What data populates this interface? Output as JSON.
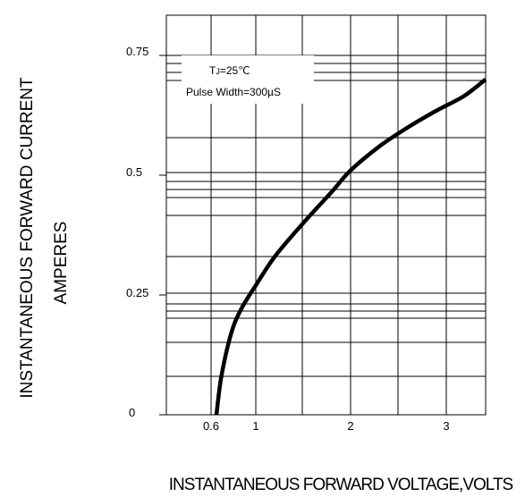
{
  "chart_data": {
    "type": "line",
    "xlabel": "INSTANTANEOUS FORWARD VOLTAGE,VOLTS",
    "ylabel_lines": [
      "INSTANTANEOUS FORWARD CURRENT",
      "AMPERES"
    ],
    "x_ticks": [
      "0.6",
      "1",
      "2",
      "3"
    ],
    "y_ticks": [
      "0",
      "0.25",
      "0.5",
      "0.75"
    ],
    "y_tick_values": [
      0,
      0.25,
      0.5,
      0.75
    ],
    "ylim": [
      0,
      0.75
    ],
    "annotation": {
      "tj_prefix": "T",
      "tj_sub": "J",
      "tj_value": "=25℃",
      "pulse": "Pulse Width=300µS"
    },
    "grid": true,
    "series": [
      {
        "x": [
          0.6,
          0.65,
          0.75,
          0.85,
          1.0,
          1.2,
          1.5,
          1.8,
          2.0,
          2.3,
          2.6,
          2.9,
          3.2,
          3.45
        ],
        "y": [
          0.0,
          0.08,
          0.17,
          0.22,
          0.27,
          0.33,
          0.4,
          0.465,
          0.51,
          0.56,
          0.6,
          0.635,
          0.665,
          0.7
        ]
      }
    ]
  }
}
